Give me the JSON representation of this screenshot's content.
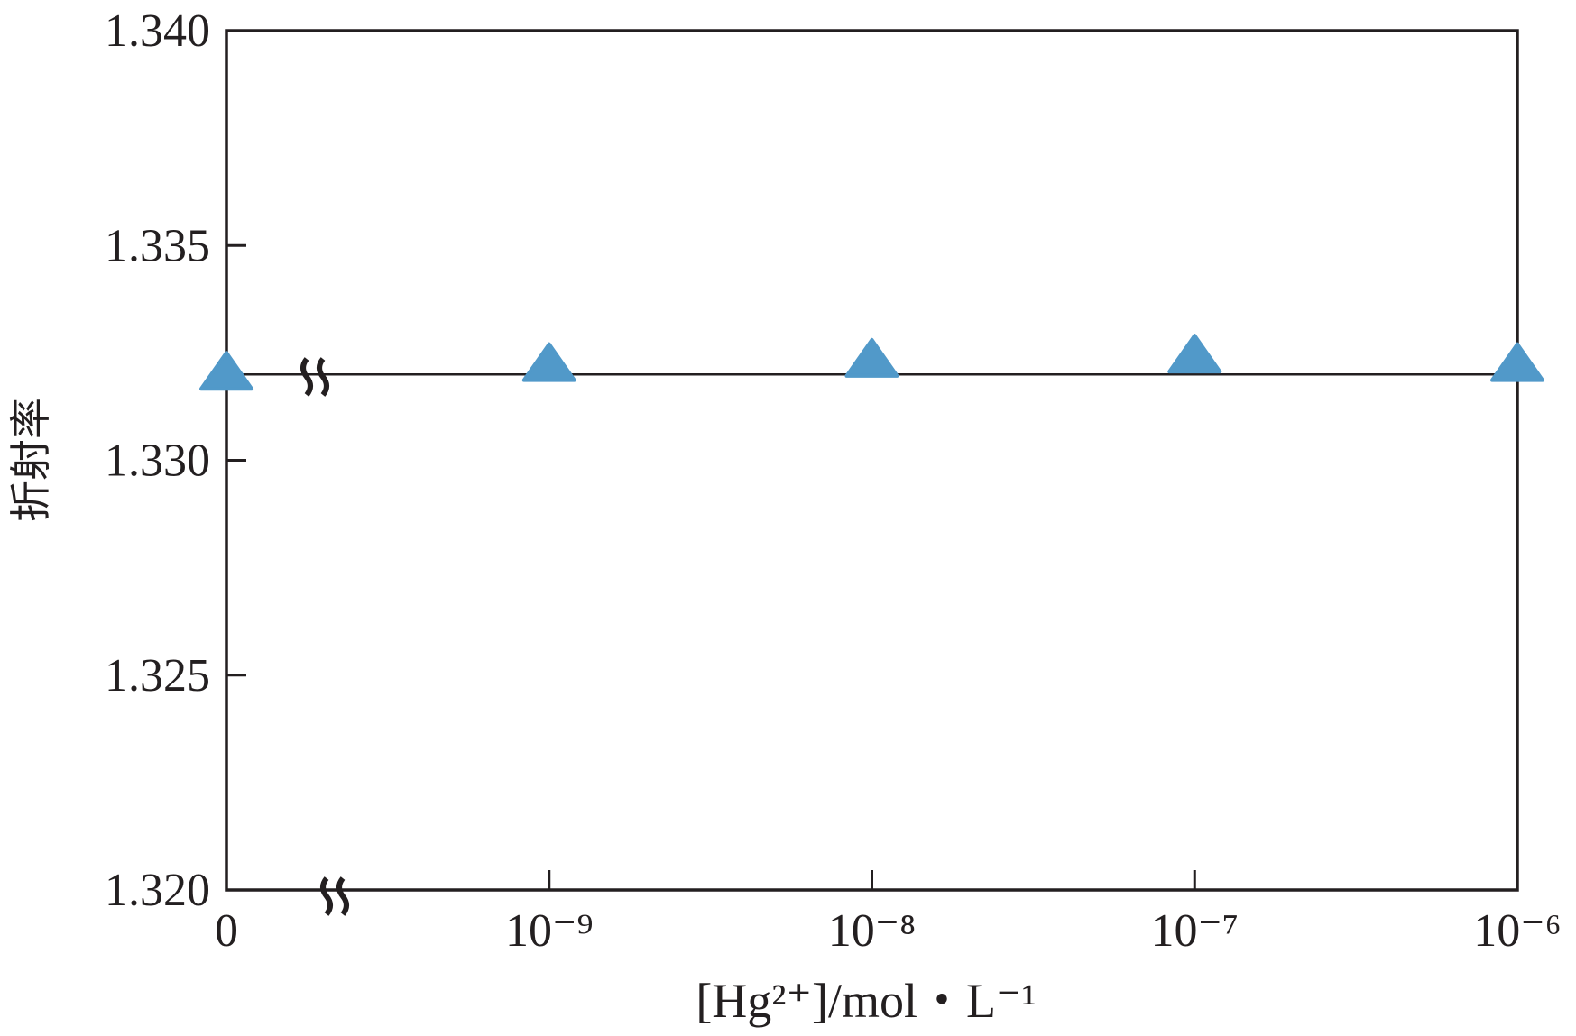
{
  "chart_data": {
    "type": "scatter",
    "marker": "triangle",
    "color": "#5199c9",
    "x_label": "[Hg²⁺]/mol・L⁻¹",
    "y_label": "折射率",
    "categories": [
      "0",
      "10⁻⁹",
      "10⁻⁸",
      "10⁻⁷",
      "10⁻⁶"
    ],
    "values": [
      1.332,
      1.3322,
      1.3323,
      1.3324,
      1.3322
    ],
    "reference_line": 1.332,
    "ylim": [
      1.32,
      1.34
    ],
    "yticks": [
      {
        "value": 1.32,
        "label": "1.320"
      },
      1.325,
      {
        "value": 1.33,
        "label": "1.330"
      },
      1.335,
      {
        "value": 1.34,
        "label": "1.340"
      }
    ],
    "grid": false
  }
}
